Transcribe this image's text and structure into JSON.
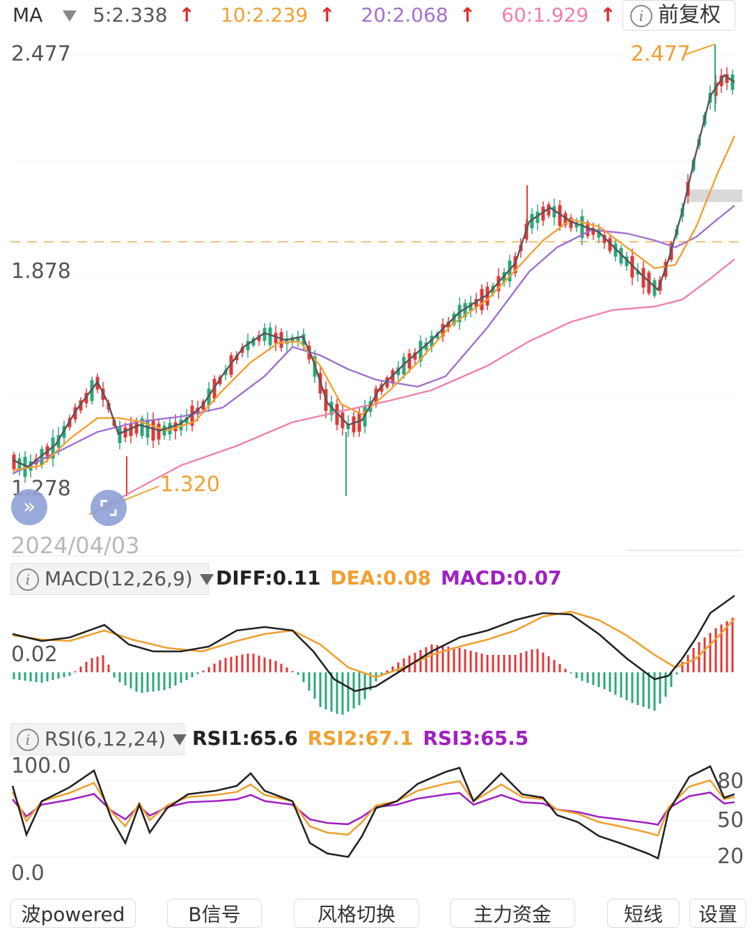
{
  "ma_legend": {
    "label": "MA",
    "ma5": "5:2.338",
    "ma10": "10:2.239",
    "ma20": "20:2.068",
    "ma60": "60:1.929",
    "arrow": "↑",
    "colors": {
      "ma5": "#555555",
      "ma10": "#f0a030",
      "ma20": "#a070d0",
      "ma60": "#f080a8"
    }
  },
  "adjust_button": {
    "label": "前复权"
  },
  "price_axis": {
    "top": "2.477",
    "mid": "1.878",
    "bottom": "1.278"
  },
  "annotations": {
    "high": "2.477",
    "low": "1.320"
  },
  "date_label": "2024/04/03",
  "macd": {
    "name": "MACD(12,26,9)",
    "diff": "DIFF:0.11",
    "dea": "DEA:0.08",
    "macd": "MACD:0.07",
    "axis_label": "0.02",
    "colors": {
      "diff": "#222222",
      "dea": "#f0a030",
      "macd": "#a020c0"
    }
  },
  "rsi": {
    "name": "RSI(6,12,24)",
    "rsi1": "RSI1:65.6",
    "rsi2": "RSI2:67.1",
    "rsi3": "RSI3:65.5",
    "axis_top": "100.0",
    "axis_bottom": "0.0",
    "right_labels": [
      "80",
      "50",
      "20"
    ]
  },
  "bottom_tabs": [
    "波powered",
    "B信号",
    "风格切换",
    "主力资金",
    "短线",
    "设置"
  ],
  "colors": {
    "up": "#e03838",
    "down": "#2aa87a"
  }
}
